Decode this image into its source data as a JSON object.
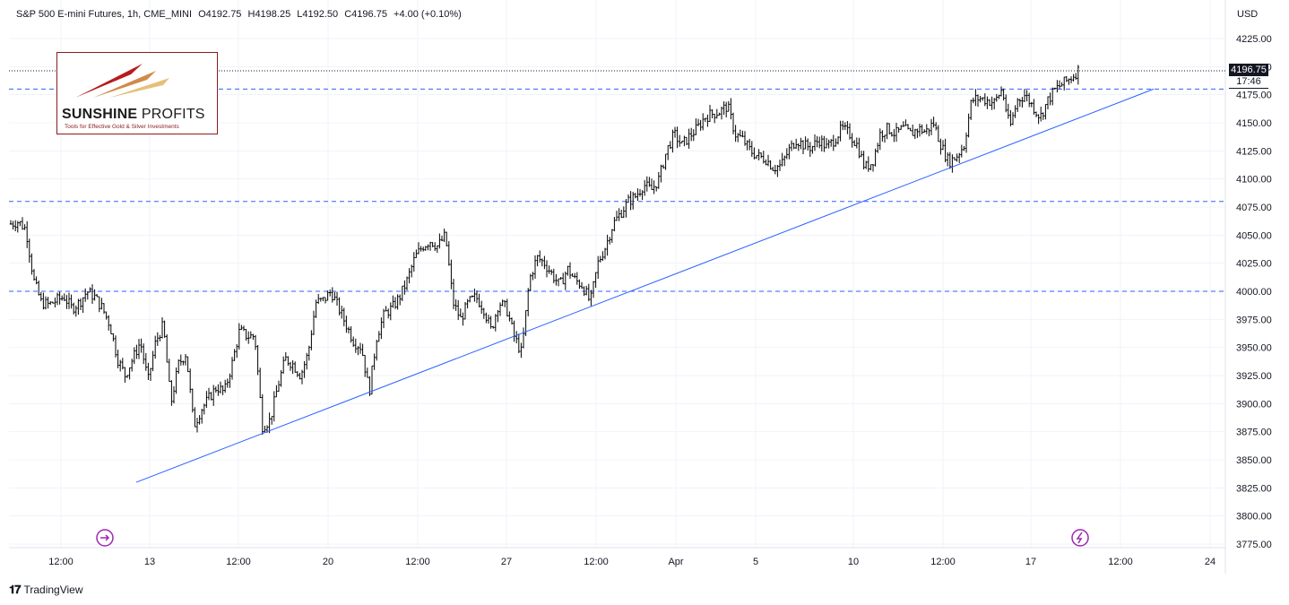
{
  "legend": {
    "symbol": "S&P 500 E-mini Futures, 1h, CME_MINI",
    "open": "O4192.75",
    "high": "H4198.25",
    "low": "L4192.50",
    "close": "C4196.75",
    "change": "+4.00 (+0.10%)"
  },
  "logo": {
    "brand_bold": "SUNSHINE",
    "brand_thin": " PROFITS",
    "tagline": "Tools for Effective Gold & Silver Investments"
  },
  "currency": "USD",
  "last_price": "4196.75",
  "countdown": "17:46",
  "footer": {
    "brand": "TradingView"
  },
  "colors": {
    "level_line": "#2962ff",
    "trend_line": "#2962ff",
    "candle": "#000000",
    "event_icon": "#9c27b0",
    "price_box": "#131722"
  },
  "icons": [
    "tv-logo-icon",
    "arrow-circle-icon",
    "lightning-circle-icon"
  ],
  "chart_data": {
    "type": "line",
    "title": "S&P 500 E-mini Futures, 1h, CME_MINI",
    "y_axis_ticks": [
      "4225.00",
      "4200.00",
      "4175.00",
      "4150.00",
      "4125.00",
      "4100.00",
      "4075.00",
      "4050.00",
      "4025.00",
      "4000.00",
      "3975.00",
      "3950.00",
      "3925.00",
      "3900.00",
      "3875.00",
      "3850.00",
      "3825.00",
      "3800.00",
      "3775.00"
    ],
    "x_axis_ticks": [
      "12:00",
      "13",
      "12:00",
      "20",
      "12:00",
      "27",
      "12:00",
      "Apr",
      "5",
      "10",
      "12:00",
      "17",
      "12:00",
      "24"
    ],
    "ylim": [
      3772,
      4260
    ],
    "horizontal_levels": [
      4180,
      4080,
      4000
    ],
    "trend_line": {
      "from": [
        "Mar 13",
        3830
      ],
      "to": [
        "Apr 20",
        4180
      ]
    },
    "series": [
      {
        "values": [
          4060,
          4062,
          4055,
          4010,
          3990,
          3988,
          3992,
          3995,
          3985,
          3990,
          4000,
          3995,
          3985,
          3970,
          3940,
          3925,
          3940,
          3955,
          3920,
          3955,
          3970,
          3900,
          3935,
          3945,
          3880,
          3895,
          3905,
          3915,
          3910,
          3935,
          3965,
          3960,
          3960,
          3880,
          3885,
          3915,
          3940,
          3935,
          3925,
          3945,
          3990,
          3992,
          4000,
          3985,
          3970,
          3955,
          3950,
          3910,
          3960,
          3980,
          3985,
          3995,
          4010,
          4030,
          4040,
          4045,
          4040,
          4050,
          3990,
          3975,
          3990,
          3995,
          3985,
          3965,
          3990,
          3985,
          3960,
          3945,
          4010,
          4030,
          4025,
          4015,
          4005,
          4020,
          4010,
          4005,
          3990,
          4025,
          4040,
          4060,
          4070,
          4080,
          4085,
          4095,
          4090,
          4100,
          4125,
          4140,
          4130,
          4138,
          4145,
          4155,
          4158,
          4160,
          4165,
          4140,
          4135,
          4125,
          4120,
          4118,
          4110,
          4112,
          4125,
          4135,
          4130,
          4128,
          4135,
          4128,
          4135,
          4145,
          4140,
          4130,
          4110,
          4115,
          4140,
          4145,
          4140,
          4145,
          4140,
          4145,
          4142,
          4150,
          4130,
          4115,
          4120,
          4130,
          4170,
          4172,
          4170,
          4168,
          4180,
          4145,
          4170,
          4175,
          4165,
          4155,
          4170,
          4180,
          4185,
          4190,
          4196.75
        ]
      }
    ]
  }
}
